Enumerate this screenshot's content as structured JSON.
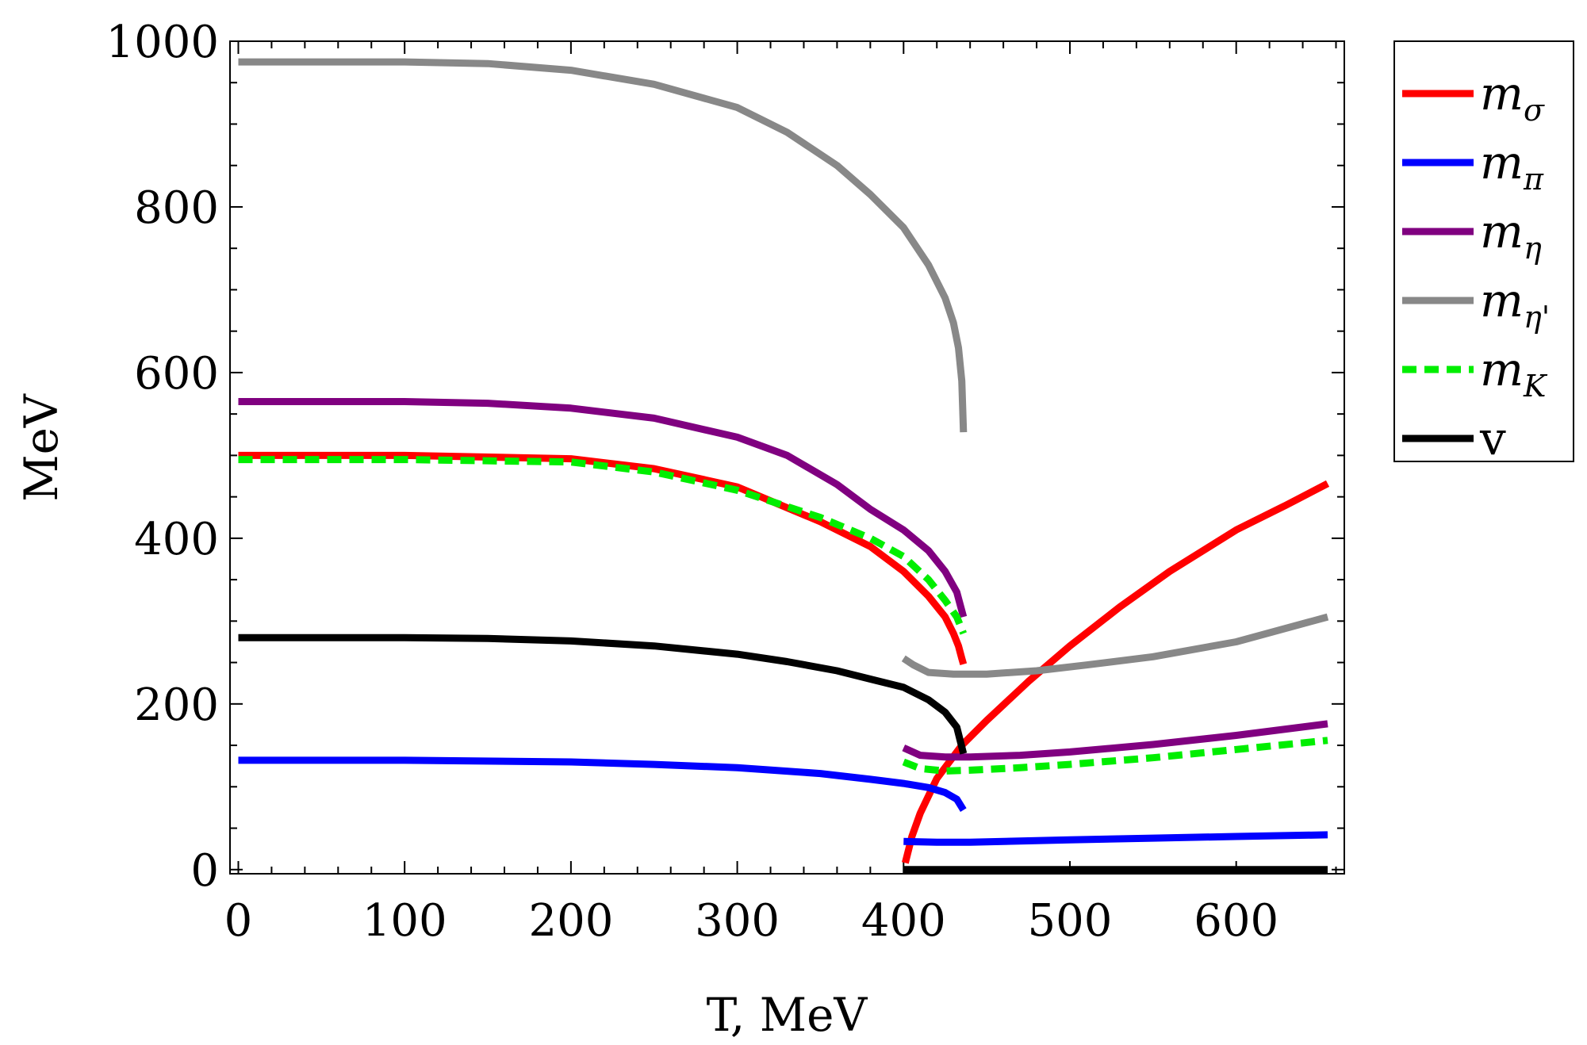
{
  "chart_data": {
    "type": "line",
    "title": "",
    "xlabel": "T, MeV",
    "ylabel": "MeV",
    "xlim": [
      -5,
      665
    ],
    "ylim": [
      -5,
      1000
    ],
    "xticks": [
      0,
      100,
      200,
      300,
      400,
      500,
      600
    ],
    "yticks": [
      0,
      200,
      400,
      600,
      800,
      1000
    ],
    "legend_position": "outside-right-top",
    "series": [
      {
        "name": "m_σ",
        "legend_main": "m",
        "legend_sub": "σ",
        "color": "#ff0000",
        "dashed": false,
        "segments": [
          [
            [
              0,
              500
            ],
            [
              100,
              500
            ],
            [
              200,
              496
            ],
            [
              250,
              484
            ],
            [
              300,
              462
            ],
            [
              350,
              420
            ],
            [
              380,
              390
            ],
            [
              400,
              360
            ],
            [
              415,
              330
            ],
            [
              425,
              305
            ],
            [
              430,
              285
            ],
            [
              433,
              270
            ],
            [
              435,
              255
            ],
            [
              436,
              248
            ]
          ],
          [
            [
              401,
              8
            ],
            [
              405,
              40
            ],
            [
              410,
              68
            ],
            [
              420,
              110
            ],
            [
              435,
              150
            ],
            [
              450,
              180
            ],
            [
              475,
              227
            ],
            [
              500,
              270
            ],
            [
              530,
              317
            ],
            [
              560,
              360
            ],
            [
              600,
              410
            ],
            [
              630,
              440
            ],
            [
              655,
              466
            ]
          ]
        ]
      },
      {
        "name": "m_π",
        "legend_main": "m",
        "legend_sub": "π",
        "color": "#0000ff",
        "dashed": false,
        "segments": [
          [
            [
              0,
              132
            ],
            [
              100,
              132
            ],
            [
              200,
              130
            ],
            [
              250,
              127
            ],
            [
              300,
              123
            ],
            [
              350,
              116
            ],
            [
              380,
              109
            ],
            [
              400,
              104
            ],
            [
              415,
              99
            ],
            [
              425,
              93
            ],
            [
              432,
              85
            ],
            [
              436,
              72
            ]
          ],
          [
            [
              400,
              34
            ],
            [
              420,
              33
            ],
            [
              440,
              33
            ],
            [
              500,
              36
            ],
            [
              550,
              38
            ],
            [
              600,
              40
            ],
            [
              655,
              42
            ]
          ]
        ]
      },
      {
        "name": "m_η",
        "legend_main": "m",
        "legend_sub": "η",
        "color": "#800080",
        "dashed": false,
        "segments": [
          [
            [
              0,
              565
            ],
            [
              100,
              565
            ],
            [
              150,
              563
            ],
            [
              200,
              557
            ],
            [
              250,
              545
            ],
            [
              300,
              522
            ],
            [
              330,
              500
            ],
            [
              360,
              465
            ],
            [
              380,
              435
            ],
            [
              400,
              410
            ],
            [
              415,
              385
            ],
            [
              425,
              360
            ],
            [
              432,
              335
            ],
            [
              436,
              305
            ]
          ],
          [
            [
              400,
              147
            ],
            [
              410,
              138
            ],
            [
              425,
              136
            ],
            [
              440,
              136
            ],
            [
              470,
              138
            ],
            [
              500,
              142
            ],
            [
              550,
              151
            ],
            [
              600,
              162
            ],
            [
              655,
              176
            ]
          ]
        ]
      },
      {
        "name": "m_η'",
        "legend_main": "m",
        "legend_sub": "η'",
        "color": "#888888",
        "dashed": false,
        "segments": [
          [
            [
              0,
              975
            ],
            [
              100,
              975
            ],
            [
              150,
              973
            ],
            [
              200,
              965
            ],
            [
              250,
              948
            ],
            [
              300,
              920
            ],
            [
              330,
              890
            ],
            [
              360,
              850
            ],
            [
              380,
              815
            ],
            [
              400,
              775
            ],
            [
              415,
              730
            ],
            [
              425,
              690
            ],
            [
              430,
              660
            ],
            [
              433,
              630
            ],
            [
              435,
              590
            ],
            [
              436,
              528
            ]
          ],
          [
            [
              400,
              255
            ],
            [
              406,
              247
            ],
            [
              415,
              238
            ],
            [
              430,
              236
            ],
            [
              450,
              236
            ],
            [
              480,
              240
            ],
            [
              510,
              247
            ],
            [
              550,
              257
            ],
            [
              600,
              275
            ],
            [
              655,
              305
            ]
          ]
        ]
      },
      {
        "name": "m_K",
        "legend_main": "m",
        "legend_sub": "K",
        "color": "#00ee00",
        "dashed": true,
        "segments": [
          [
            [
              0,
              495
            ],
            [
              100,
              495
            ],
            [
              200,
              492
            ],
            [
              250,
              480
            ],
            [
              300,
              458
            ],
            [
              350,
              425
            ],
            [
              380,
              400
            ],
            [
              400,
              378
            ],
            [
              415,
              350
            ],
            [
              425,
              325
            ],
            [
              432,
              305
            ],
            [
              436,
              285
            ]
          ],
          [
            [
              400,
              130
            ],
            [
              410,
              122
            ],
            [
              425,
              119
            ],
            [
              440,
              120
            ],
            [
              470,
              123
            ],
            [
              500,
              127
            ],
            [
              550,
              135
            ],
            [
              600,
              145
            ],
            [
              655,
              156
            ]
          ]
        ]
      },
      {
        "name": "v",
        "legend_main": "v",
        "legend_sub": "",
        "color": "#000000",
        "dashed": false,
        "segments": [
          [
            [
              0,
              280
            ],
            [
              100,
              280
            ],
            [
              150,
              279
            ],
            [
              200,
              276
            ],
            [
              250,
              270
            ],
            [
              300,
              260
            ],
            [
              330,
              251
            ],
            [
              360,
              240
            ],
            [
              380,
              230
            ],
            [
              400,
              220
            ],
            [
              415,
              205
            ],
            [
              425,
              190
            ],
            [
              432,
              172
            ],
            [
              436,
              140
            ]
          ],
          [
            [
              400,
              0
            ],
            [
              500,
              0
            ],
            [
              600,
              0
            ],
            [
              655,
              0
            ]
          ]
        ]
      }
    ]
  }
}
